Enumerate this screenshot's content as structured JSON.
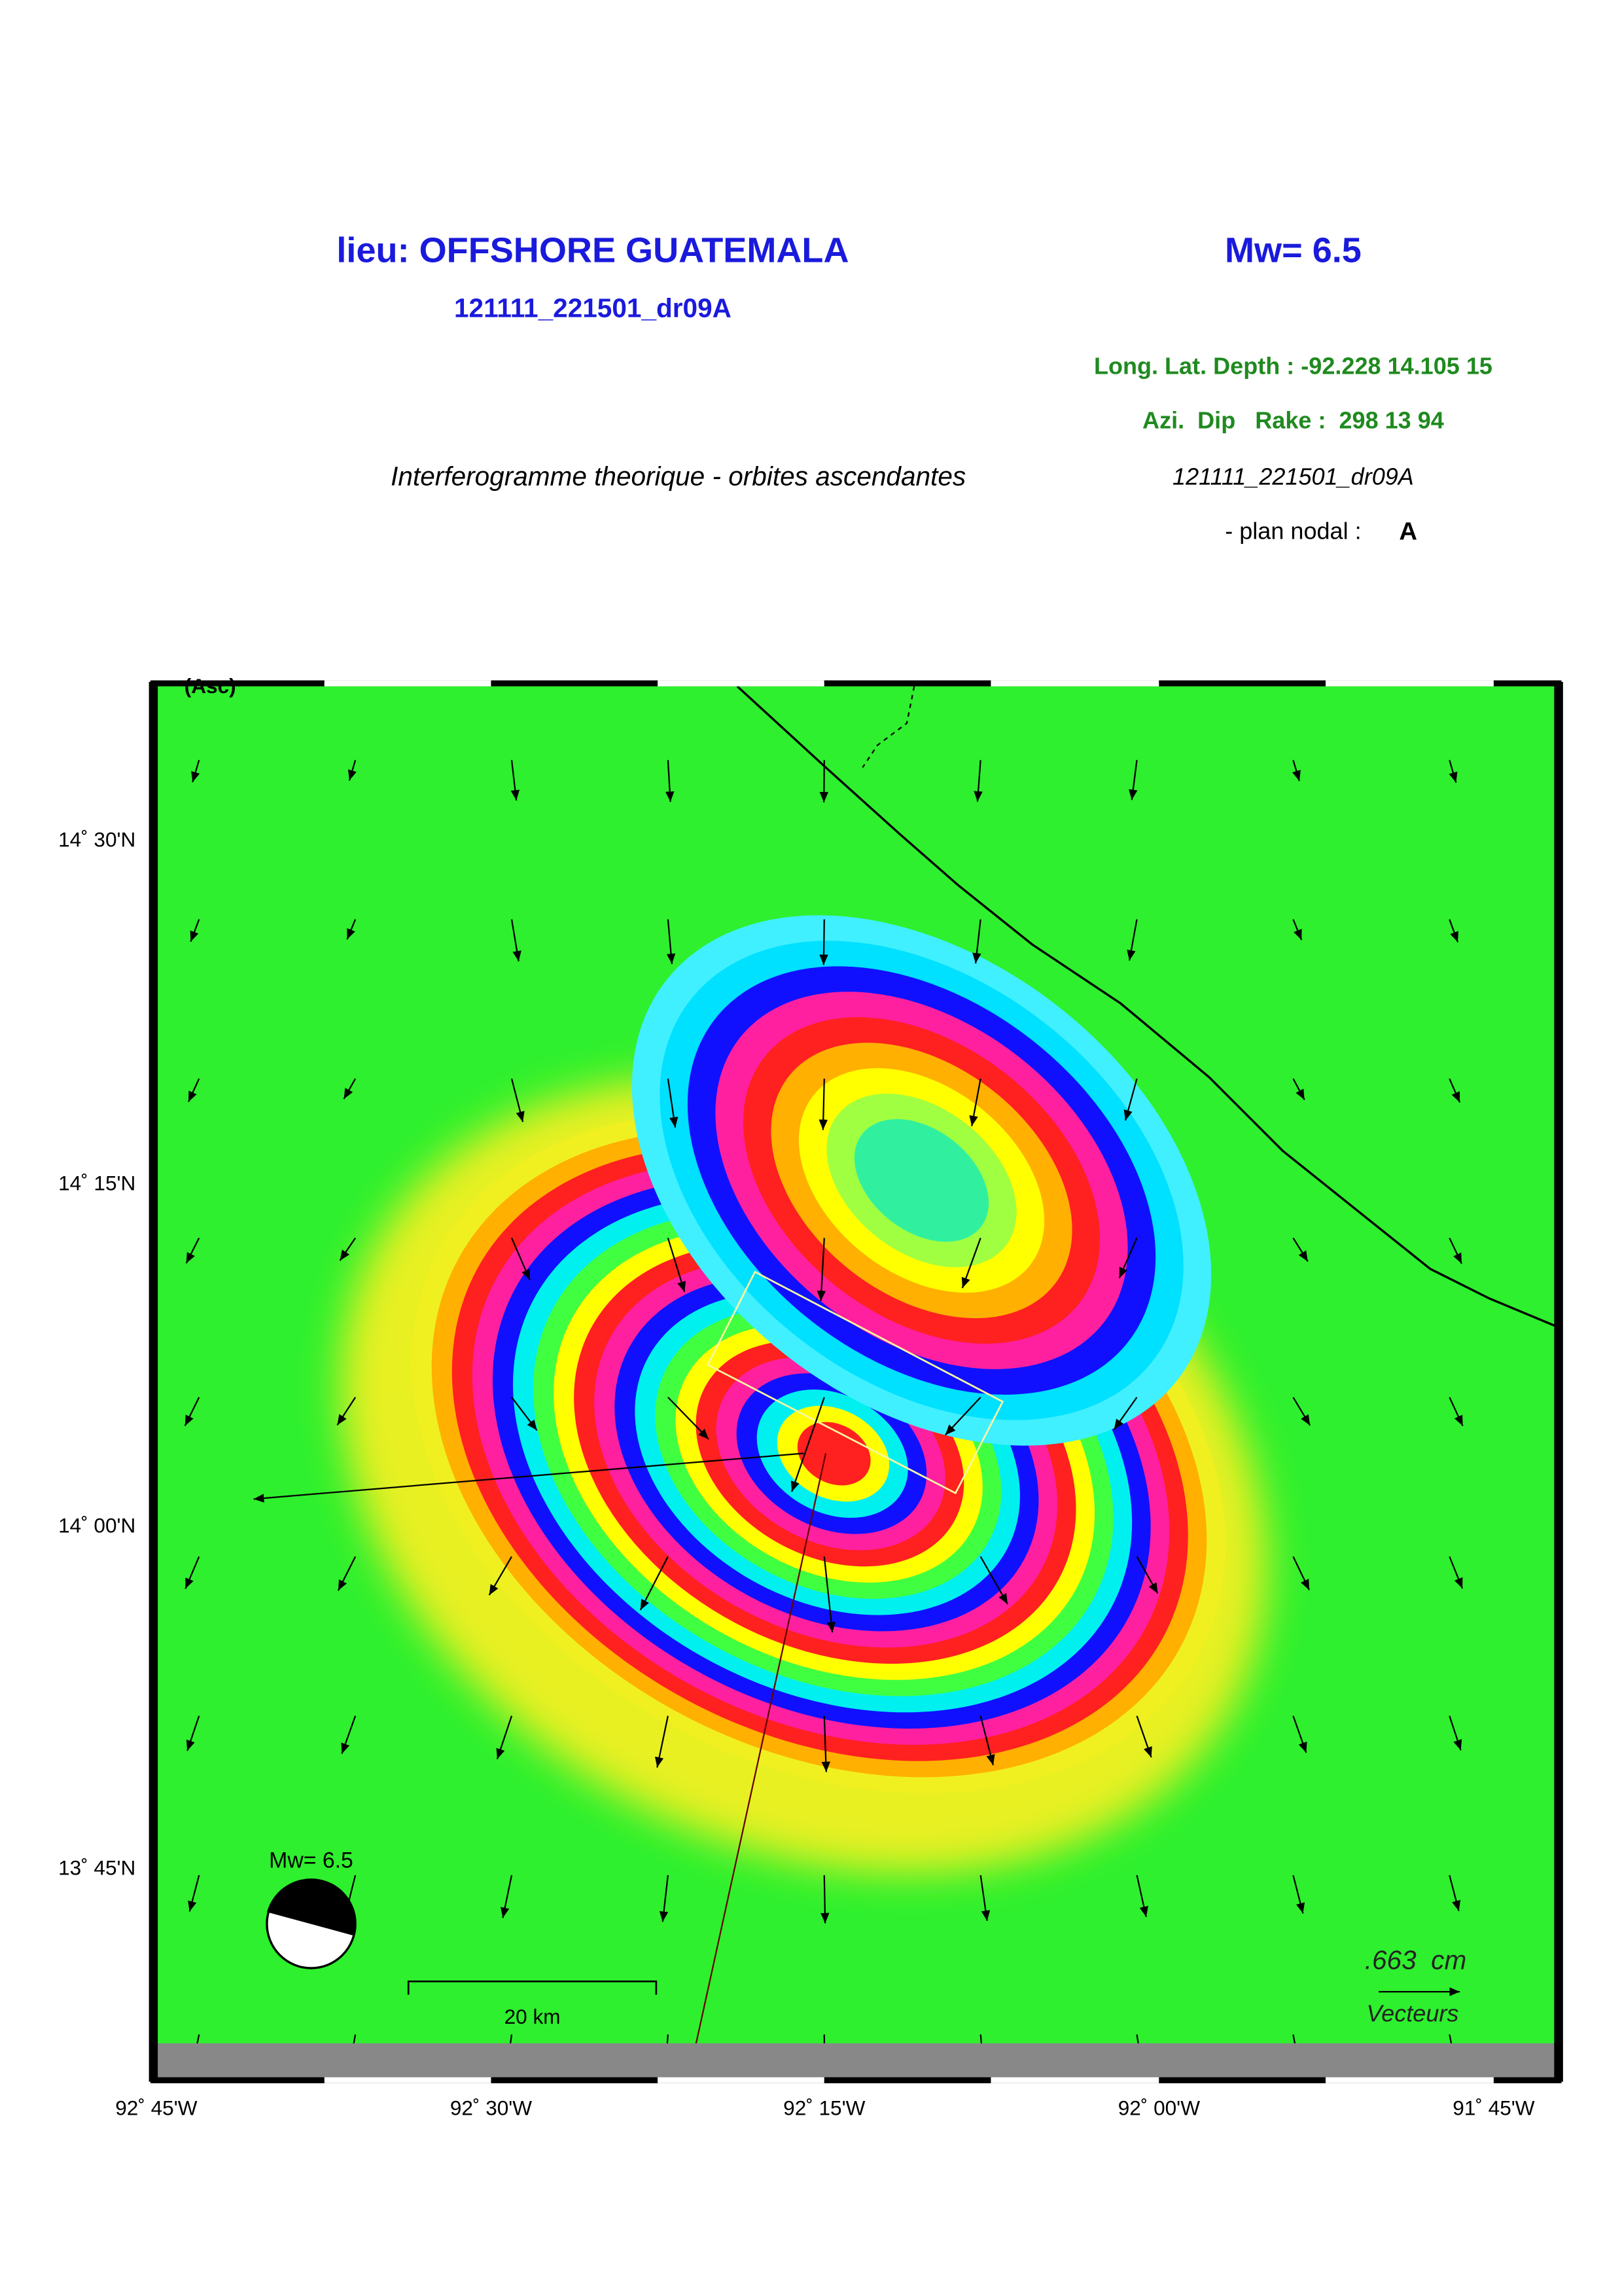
{
  "header": {
    "title": "lieu: OFFSHORE GUATEMALA",
    "magnitude": "Mw= 6.5",
    "event_id": "121111_221501_dr09A",
    "location_params": "Long. Lat. Depth : -92.228 14.105 15",
    "mechanism_params": "Azi.  Dip   Rake :  298 13 94",
    "subtitle": "Interferogramme theorique - orbites ascendantes",
    "event_id_2": "121111_221501_dr09A",
    "nodal_plane_label": "- plan nodal :",
    "nodal_plane": "A"
  },
  "map": {
    "orbit": "(Asc)",
    "lat_labels": [
      "14˚ 30'N",
      "14˚ 15'N",
      "14˚ 00'N",
      "13˚ 45'N"
    ],
    "lon_labels": [
      "92˚ 45'W",
      "92˚ 30'W",
      "92˚ 15'W",
      "92˚ 00'W",
      "91˚ 45'W"
    ],
    "beachball_label": "Mw= 6.5",
    "scale_label": "20 km",
    "vector_scale": ".663  cm",
    "vector_label": "Vecteurs"
  }
}
